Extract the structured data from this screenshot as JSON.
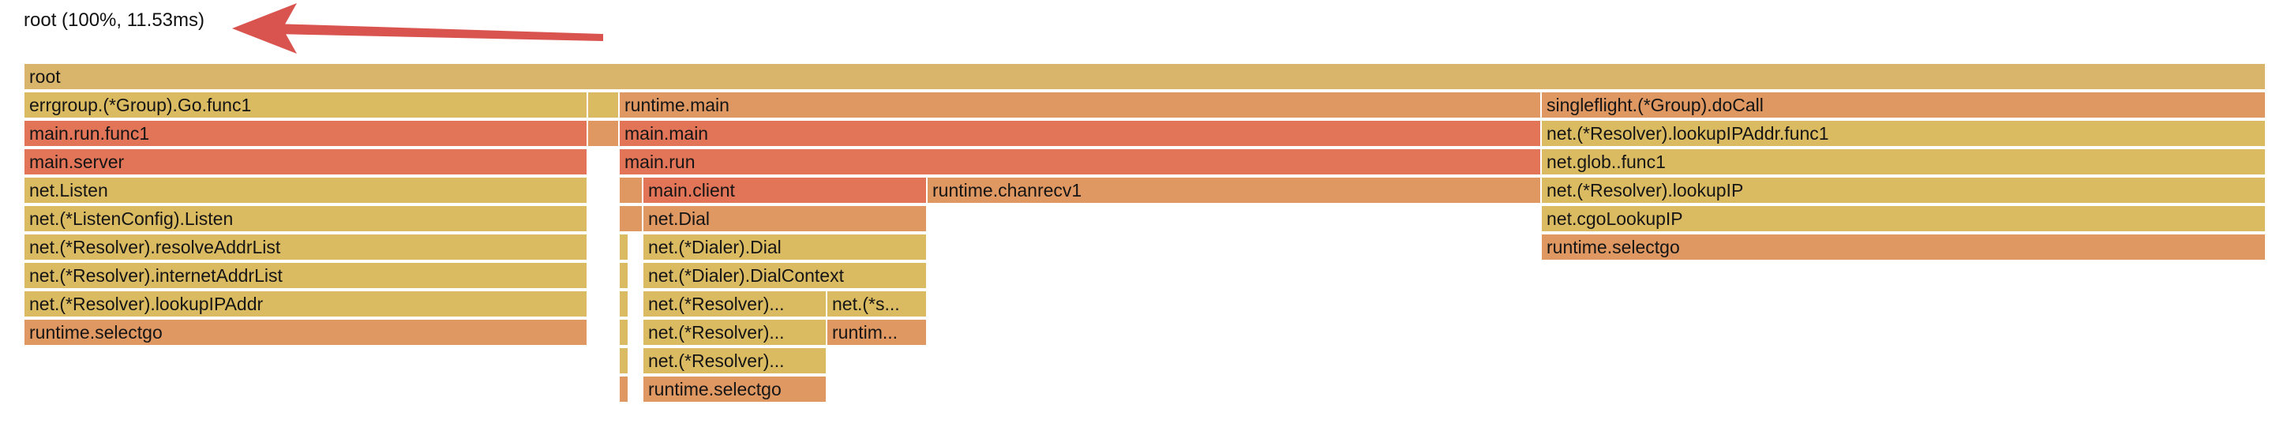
{
  "header": {
    "title": "root (100%, 11.53ms)"
  },
  "colors": {
    "yellow": "#dbbb62",
    "orange": "#df9862",
    "red": "#e27457",
    "tan": "#d9b46b",
    "arrow": "#d9534f"
  },
  "frames": {
    "root": "root",
    "errgroup_func1": "errgroup.(*Group).Go.func1",
    "runtime_main": "runtime.main",
    "singleflight_docall": "singleflight.(*Group).doCall",
    "main_run_func1": "main.run.func1",
    "main_main": "main.main",
    "lookup_ipaddr_func1": "net.(*Resolver).lookupIPAddr.func1",
    "main_server": "main.server",
    "main_run": "main.run",
    "net_glob_func1": "net.glob..func1",
    "net_listen": "net.Listen",
    "main_client": "main.client",
    "runtime_chanrecv1": "runtime.chanrecv1",
    "resolver_lookupip": "net.(*Resolver).lookupIP",
    "listenconfig_listen": "net.(*ListenConfig).Listen",
    "net_dial": "net.Dial",
    "net_cgolookupip": "net.cgoLookupIP",
    "resolve_addr_list": "net.(*Resolver).resolveAddrList",
    "dialer_dial": "net.(*Dialer).Dial",
    "runtime_selectgo_right": "runtime.selectgo",
    "internet_addr_list": "net.(*Resolver).internetAddrList",
    "dialer_dialcontext": "net.(*Dialer).DialContext",
    "lookup_ipaddr_left": "net.(*Resolver).lookupIPAddr",
    "resolver_trunc_1": "net.(*Resolver)...",
    "sysdialer_trunc": "net.(*s...",
    "runtime_selectgo_left": "runtime.selectgo",
    "resolver_trunc_2": "net.(*Resolver)...",
    "runtim_trunc": "runtim...",
    "resolver_trunc_3": "net.(*Resolver)...",
    "runtime_selectgo_center": "runtime.selectgo"
  }
}
